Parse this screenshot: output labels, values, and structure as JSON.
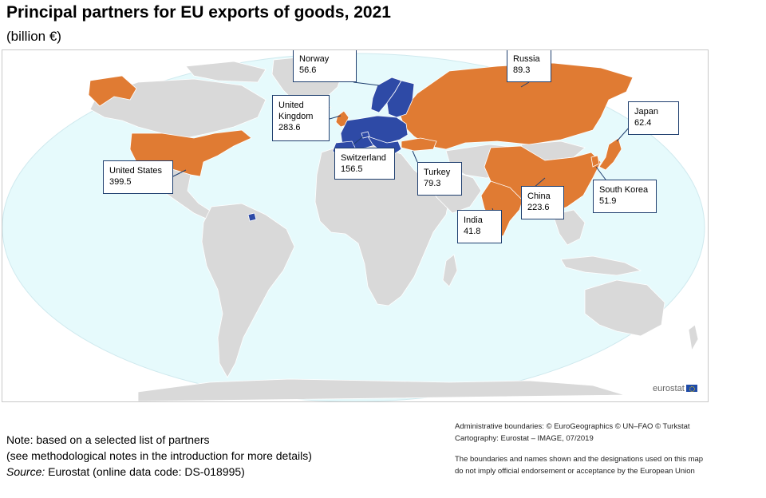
{
  "title": "Principal partners for EU exports of goods, 2021",
  "subtitle": "(billion €)",
  "colors": {
    "ocean": "#e6fafc",
    "land": "#d9d9d9",
    "eu": "#2e4aa6",
    "partner": "#e07b33",
    "border": "#ffffff",
    "callout_border": "#1f3f6f"
  },
  "partners": [
    {
      "country": "United States",
      "value": "399.5"
    },
    {
      "country": "United Kingdom",
      "value": "283.6",
      "label_lines": [
        "United",
        "Kingdom"
      ]
    },
    {
      "country": "China",
      "value": "223.6"
    },
    {
      "country": "Switzerland",
      "value": "156.5"
    },
    {
      "country": "Russia",
      "value": "89.3"
    },
    {
      "country": "Turkey",
      "value": "79.3"
    },
    {
      "country": "Japan",
      "value": "62.4"
    },
    {
      "country": "Norway",
      "value": "56.6"
    },
    {
      "country": "South Korea",
      "value": "51.9"
    },
    {
      "country": "India",
      "value": "41.8"
    }
  ],
  "logo": "eurostat",
  "note": {
    "line1": "Note: based on a selected list of partners",
    "line2": "(see methodological notes in the introduction for more details)",
    "source_label": "Source:",
    "source_text": " Eurostat (online data code: DS-018995)"
  },
  "credits": {
    "line1": "Administrative boundaries: © EuroGeographics © UN–FAO © Turkstat",
    "line2": "Cartography: Eurostat – IMAGE, 07/2019",
    "line3": "The boundaries and names shown and the designations used on this map",
    "line4": "do not imply official endorsement or acceptance by the European Union"
  }
}
